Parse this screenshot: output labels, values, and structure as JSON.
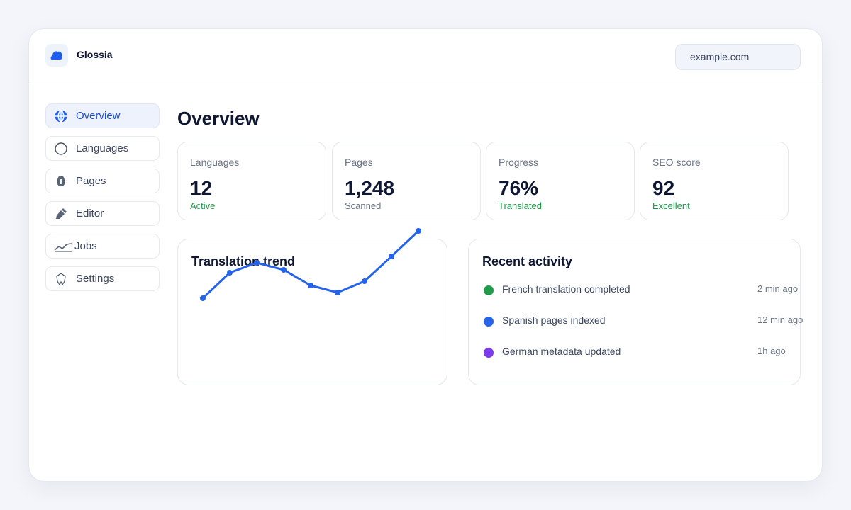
{
  "app": {
    "name": "Glossia",
    "domain": "example.com"
  },
  "sidebar": {
    "items": [
      {
        "label": "Overview",
        "icon": "globe-icon",
        "active": true
      },
      {
        "label": "Languages",
        "icon": "circle-icon",
        "active": false
      },
      {
        "label": "Pages",
        "icon": "document-icon",
        "active": false
      },
      {
        "label": "Editor",
        "icon": "pen-icon",
        "active": false
      },
      {
        "label": "Jobs",
        "icon": "activity-icon",
        "active": false
      },
      {
        "label": "Settings",
        "icon": "badge-icon",
        "active": false
      }
    ]
  },
  "main": {
    "title": "Overview",
    "stats": [
      {
        "label": "Languages",
        "value": "12",
        "sub": "Active",
        "sub_status": "good"
      },
      {
        "label": "Pages",
        "value": "1,248",
        "sub": "Scanned",
        "sub_status": "neutral"
      },
      {
        "label": "Progress",
        "value": "76%",
        "sub": "Translated",
        "sub_status": "good"
      },
      {
        "label": "SEO score",
        "value": "92",
        "sub": "Excellent",
        "sub_status": "good"
      }
    ],
    "trend": {
      "title": "Translation trend"
    },
    "activity": {
      "title": "Recent activity",
      "items": [
        {
          "text": "French translation completed",
          "time": "2 min ago",
          "color": "#1e9a4a"
        },
        {
          "text": "Spanish pages indexed",
          "time": "12 min ago",
          "color": "#2563eb"
        },
        {
          "text": "German metadata updated",
          "time": "1h ago",
          "color": "#7c3aed"
        }
      ]
    }
  },
  "colors": {
    "accent": "#2563eb",
    "success": "#1e9a4a",
    "text": "#0f1733",
    "muted": "#6a7385"
  },
  "chart_data": {
    "type": "line",
    "title": "Translation trend",
    "values": [
      14,
      50,
      64,
      54,
      32,
      22,
      38,
      73,
      109
    ],
    "ylim": [
      0,
      120
    ],
    "grid": false,
    "color": "#2563eb"
  }
}
